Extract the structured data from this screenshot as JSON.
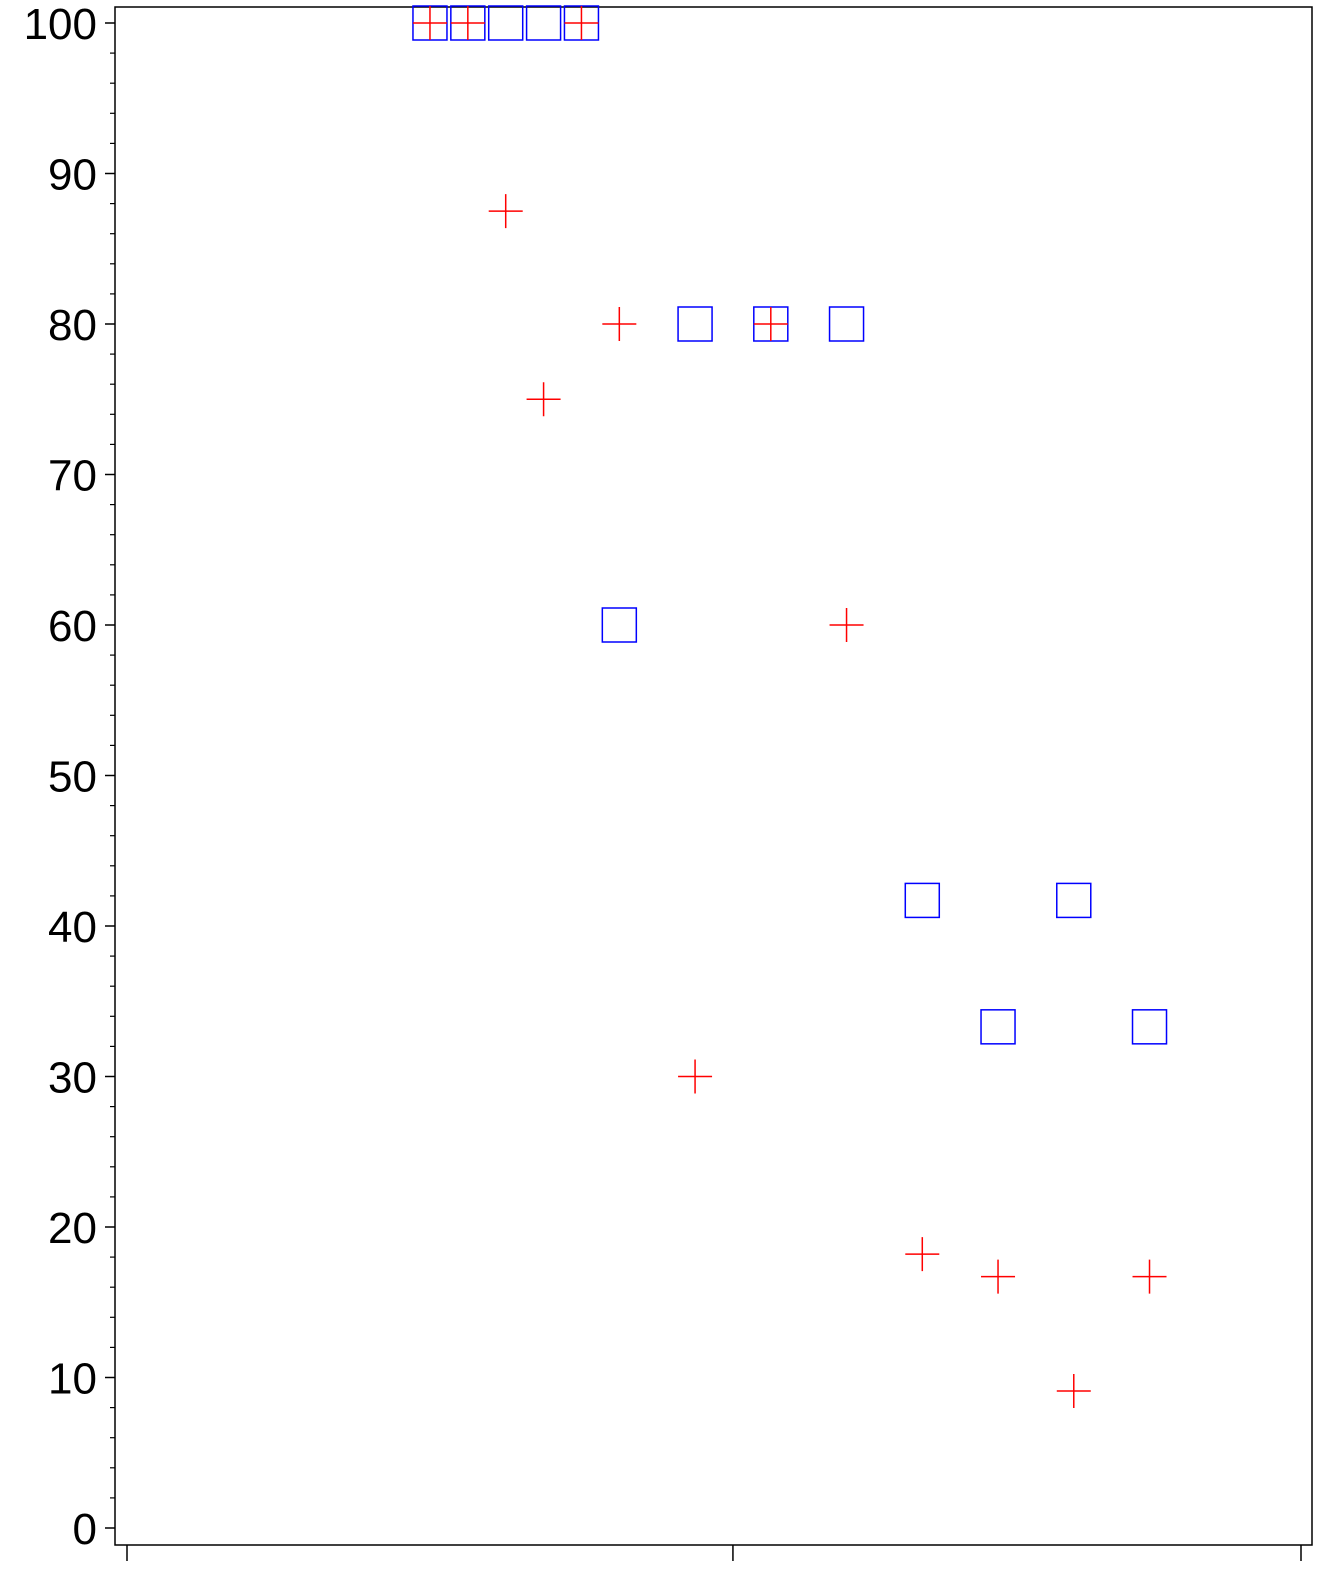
{
  "chart_data": {
    "type": "scatter",
    "title": "",
    "xlabel": "",
    "ylabel": "",
    "ylim": [
      0,
      100
    ],
    "xlim": [
      -8,
      23
    ],
    "y_major_ticks": [
      0,
      10,
      20,
      30,
      40,
      50,
      60,
      70,
      80,
      90,
      100
    ],
    "y_tick_labels": [
      "0",
      "10",
      "20",
      "30",
      "40",
      "50",
      "60",
      "70",
      "80",
      "90",
      "100"
    ],
    "y_minor_step": 2,
    "x_major_ticks": [
      -8,
      8,
      23
    ],
    "x_tick_labels": [],
    "grid": false,
    "legend": "none",
    "series": [
      {
        "marker": "square",
        "color": "#0000ff",
        "x": [
          0,
          1,
          2,
          3,
          4,
          5,
          7,
          9,
          11,
          13,
          15,
          17,
          19
        ],
        "y": [
          100,
          100,
          100,
          100,
          100,
          60,
          80,
          80,
          80,
          41.7,
          33.3,
          41.7,
          33.3
        ]
      },
      {
        "marker": "plus",
        "color": "#ff0000",
        "x": [
          0,
          1,
          2,
          3,
          4,
          5,
          7,
          9,
          11,
          13,
          15,
          17,
          19
        ],
        "y": [
          100,
          100,
          87.5,
          75,
          100,
          80,
          30,
          80,
          60,
          18.2,
          16.7,
          9.1,
          16.7
        ]
      }
    ]
  }
}
